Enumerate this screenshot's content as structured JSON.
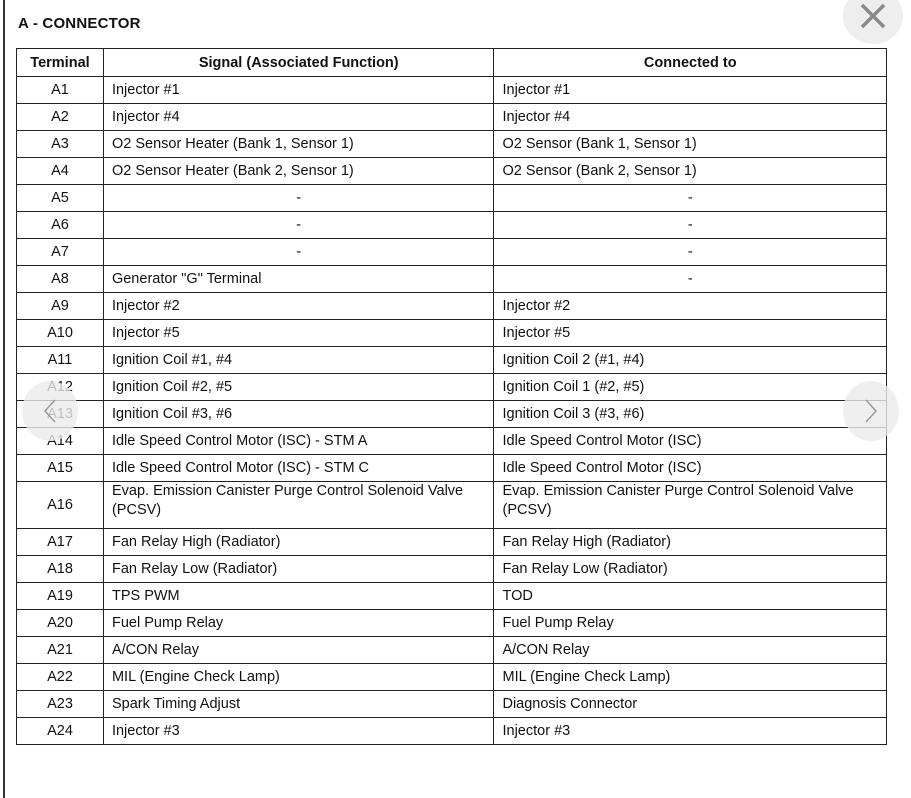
{
  "title": "A - CONNECTOR",
  "columns": [
    "Terminal",
    "Signal (Associated Function)",
    "Connected to"
  ],
  "rows": [
    {
      "terminal": "A1",
      "signal": "Injector #1",
      "connected": "Injector #1"
    },
    {
      "terminal": "A2",
      "signal": "Injector #4",
      "connected": "Injector #4"
    },
    {
      "terminal": "A3",
      "signal": "O2 Sensor Heater (Bank 1, Sensor 1)",
      "connected": "O2 Sensor (Bank 1, Sensor 1)"
    },
    {
      "terminal": "A4",
      "signal": "O2 Sensor Heater (Bank 2, Sensor 1)",
      "connected": "O2 Sensor (Bank 2, Sensor 1)"
    },
    {
      "terminal": "A5",
      "signal": "-",
      "connected": "-"
    },
    {
      "terminal": "A6",
      "signal": "-",
      "connected": "-"
    },
    {
      "terminal": "A7",
      "signal": "-",
      "connected": "-"
    },
    {
      "terminal": "A8",
      "signal": "Generator \"G\" Terminal",
      "connected": "-"
    },
    {
      "terminal": "A9",
      "signal": "Injector #2",
      "connected": "Injector #2"
    },
    {
      "terminal": "A10",
      "signal": "Injector #5",
      "connected": "Injector #5"
    },
    {
      "terminal": "A11",
      "signal": "Ignition Coil #1, #4",
      "connected": "Ignition Coil 2 (#1, #4)"
    },
    {
      "terminal": "A12",
      "signal": "Ignition Coil #2, #5",
      "connected": "Ignition Coil 1 (#2, #5)"
    },
    {
      "terminal": "A13",
      "signal": "Ignition Coil #3, #6",
      "connected": "Ignition Coil 3 (#3, #6)"
    },
    {
      "terminal": "A14",
      "signal": "Idle Speed Control Motor (ISC) - STM A",
      "connected": "Idle Speed Control Motor (ISC)"
    },
    {
      "terminal": "A15",
      "signal": "Idle Speed Control Motor (ISC) - STM C",
      "connected": "Idle Speed Control Motor (ISC)"
    },
    {
      "terminal": "A16",
      "signal": "Evap.  Emission Canister Purge Control Solenoid Valve (PCSV)",
      "connected": "Evap.  Emission Canister Purge Control Solenoid Valve (PCSV)"
    },
    {
      "terminal": "A17",
      "signal": "Fan Relay High (Radiator)",
      "connected": "Fan Relay High (Radiator)"
    },
    {
      "terminal": "A18",
      "signal": "Fan Relay Low (Radiator)",
      "connected": "Fan Relay Low (Radiator)"
    },
    {
      "terminal": "A19",
      "signal": "TPS PWM",
      "connected": "TOD"
    },
    {
      "terminal": "A20",
      "signal": "Fuel Pump Relay",
      "connected": "Fuel Pump Relay"
    },
    {
      "terminal": "A21",
      "signal": "A/CON Relay",
      "connected": "A/CON Relay"
    },
    {
      "terminal": "A22",
      "signal": "MIL (Engine Check Lamp)",
      "connected": "MIL (Engine Check Lamp)"
    },
    {
      "terminal": "A23",
      "signal": "Spark Timing Adjust",
      "connected": "Diagnosis Connector"
    },
    {
      "terminal": "A24",
      "signal": "Injector #3",
      "connected": "Injector #3"
    }
  ],
  "icons": {
    "close": "close-icon",
    "prev": "chevron-left-icon",
    "next": "chevron-right-icon"
  }
}
